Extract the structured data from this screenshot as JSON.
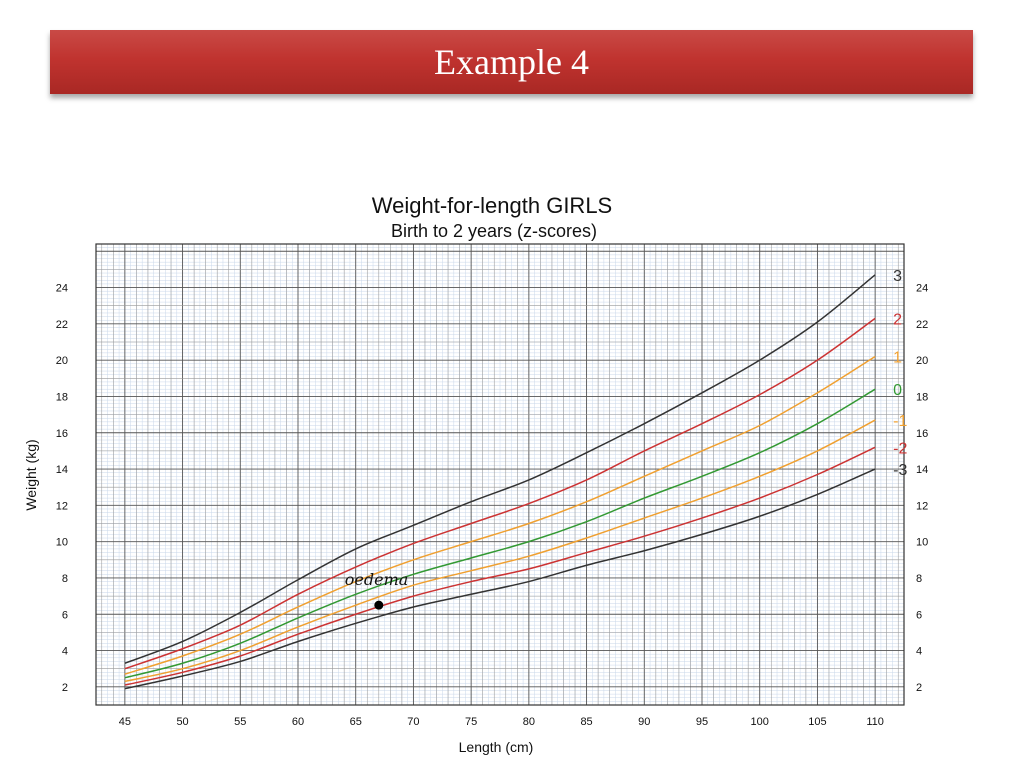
{
  "slide": {
    "title": "Example 4"
  },
  "chart_data": {
    "type": "line",
    "title": "Weight-for-length GIRLS",
    "subtitle": "Birth to 2 years (z-scores)",
    "xlabel": "Length (cm)",
    "ylabel": "Weight (kg)",
    "xlim": [
      42.5,
      112.5
    ],
    "ylim": [
      1,
      26.4
    ],
    "grid": true,
    "x_ticks": [
      45,
      50,
      55,
      60,
      65,
      70,
      75,
      80,
      85,
      90,
      95,
      100,
      105,
      110
    ],
    "y_ticks": [
      2,
      4,
      6,
      8,
      10,
      12,
      14,
      16,
      18,
      20,
      22,
      24
    ],
    "x": [
      45,
      50,
      55,
      60,
      65,
      70,
      75,
      80,
      85,
      90,
      95,
      100,
      105,
      110
    ],
    "series": [
      {
        "name": "3",
        "color": "#333333",
        "values": [
          3.3,
          4.5,
          6.1,
          7.9,
          9.6,
          10.9,
          12.2,
          13.4,
          14.9,
          16.5,
          18.2,
          20.0,
          22.1,
          24.7
        ]
      },
      {
        "name": "2",
        "color": "#cc3333",
        "values": [
          3.0,
          4.1,
          5.4,
          7.1,
          8.6,
          9.9,
          11.0,
          12.1,
          13.4,
          15.0,
          16.5,
          18.1,
          20.0,
          22.3
        ]
      },
      {
        "name": "1",
        "color": "#f0a030",
        "values": [
          2.7,
          3.7,
          4.9,
          6.4,
          7.8,
          9.0,
          10.0,
          11.0,
          12.2,
          13.6,
          15.0,
          16.4,
          18.2,
          20.2
        ]
      },
      {
        "name": "0",
        "color": "#339933",
        "values": [
          2.5,
          3.3,
          4.4,
          5.8,
          7.1,
          8.2,
          9.1,
          10.0,
          11.1,
          12.4,
          13.6,
          14.9,
          16.5,
          18.4
        ]
      },
      {
        "name": "-1",
        "color": "#f0a030",
        "values": [
          2.3,
          3.0,
          4.0,
          5.3,
          6.5,
          7.6,
          8.4,
          9.2,
          10.2,
          11.3,
          12.4,
          13.6,
          15.0,
          16.7
        ]
      },
      {
        "name": "-2",
        "color": "#cc3333",
        "values": [
          2.1,
          2.8,
          3.7,
          4.9,
          6.0,
          7.0,
          7.8,
          8.5,
          9.4,
          10.3,
          11.3,
          12.4,
          13.7,
          15.2
        ]
      },
      {
        "name": "-3",
        "color": "#333333",
        "values": [
          1.9,
          2.6,
          3.4,
          4.5,
          5.5,
          6.4,
          7.1,
          7.8,
          8.7,
          9.5,
          10.4,
          11.4,
          12.6,
          14.0
        ]
      }
    ],
    "annotations": [
      {
        "text": "oedema",
        "x": 67,
        "y": 6.5,
        "marker": "dot"
      }
    ]
  }
}
